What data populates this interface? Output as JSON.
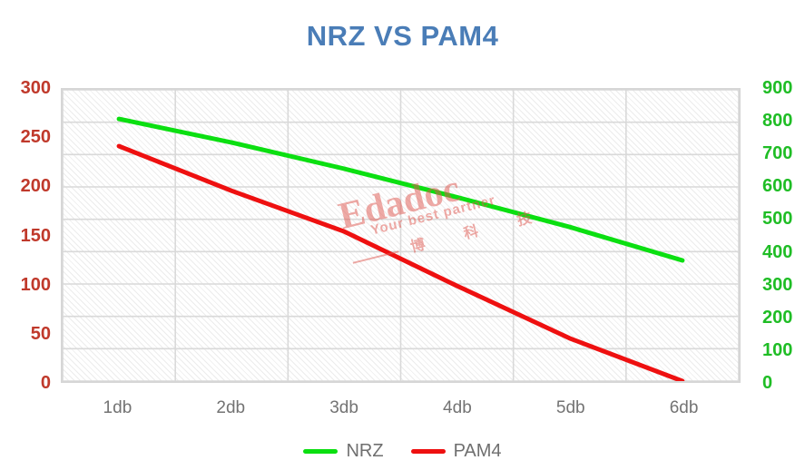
{
  "chart_data": {
    "type": "line",
    "title": "NRZ VS PAM4",
    "title_color": "#4a7db7",
    "categories": [
      "1db",
      "2db",
      "3db",
      "4db",
      "5db",
      "6db"
    ],
    "series": [
      {
        "name": "NRZ",
        "axis": "right",
        "color": "#0bdf11",
        "values": [
          810,
          737,
          656,
          568,
          476,
          373
        ]
      },
      {
        "name": "PAM4",
        "axis": "left",
        "color": "#ee1010",
        "values": [
          242,
          196,
          154,
          98,
          44,
          0
        ]
      }
    ],
    "axes": {
      "left": {
        "min": 0,
        "max": 300,
        "step": 50,
        "ticks": [
          0,
          50,
          100,
          150,
          200,
          250,
          300
        ],
        "color": "#c0392b"
      },
      "right": {
        "min": 0,
        "max": 900,
        "step": 100,
        "ticks": [
          0,
          100,
          200,
          300,
          400,
          500,
          600,
          700,
          800,
          900
        ],
        "color": "#1fbd25"
      }
    },
    "grid": true,
    "gridline_color": "#d9d9d9",
    "legend_position": "bottom"
  },
  "watermark": {
    "brand": "Edadoc",
    "slogan": "Your best partner",
    "cjk": "博 科 技"
  }
}
